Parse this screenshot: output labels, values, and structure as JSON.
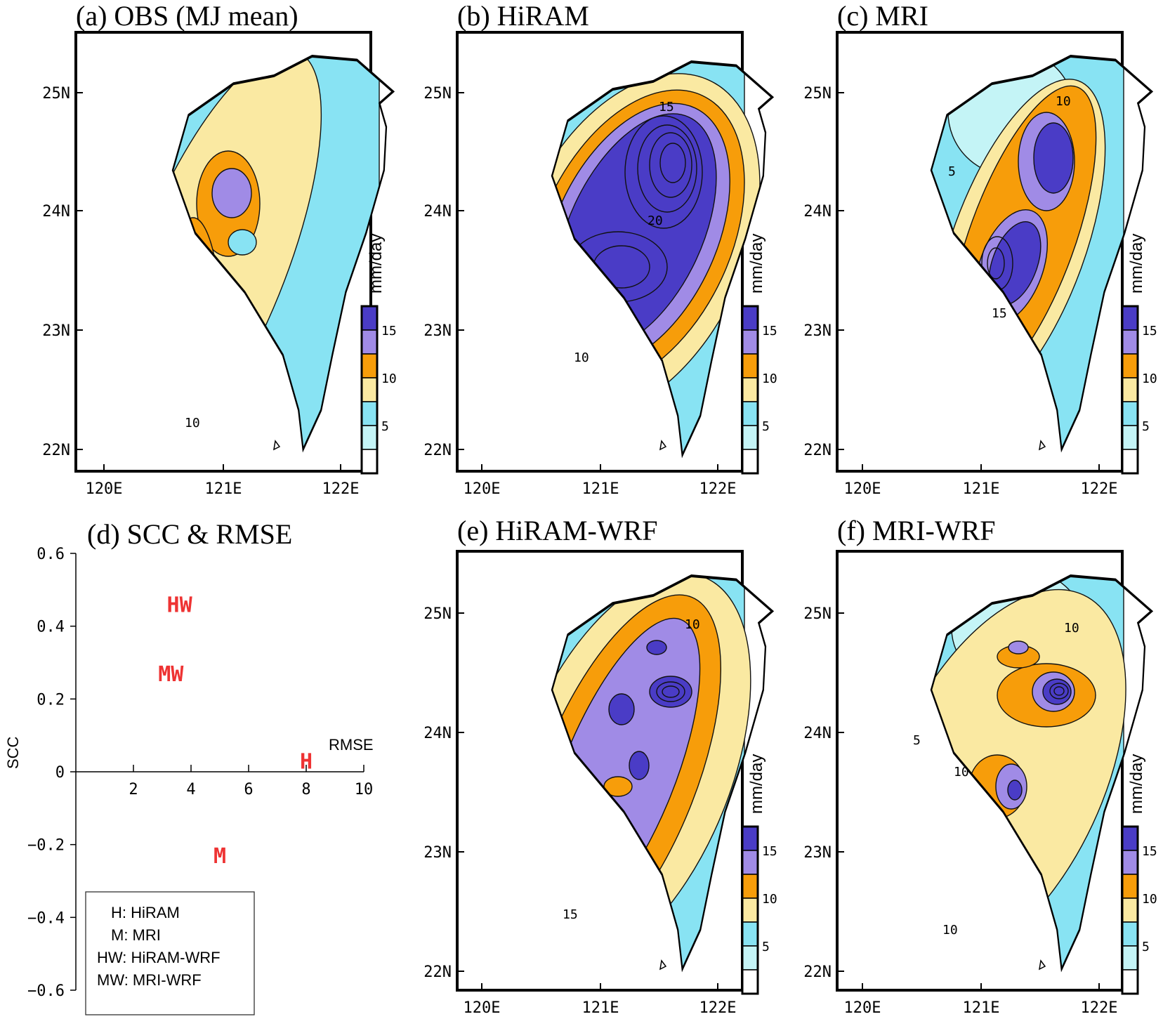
{
  "colors": {
    "level_0_5": "#c4f4f6",
    "level_5_8": "#88e3f3",
    "level_8_10": "#fae9a2",
    "level_10_13": "#f79d0a",
    "level_13_15": "#a08be6",
    "level_15_plus": "#4a3cc6",
    "points": "#ee3333"
  },
  "panels": [
    {
      "key": "a",
      "title": "(a) OBS (MJ mean)"
    },
    {
      "key": "b",
      "title": "(b) HiRAM"
    },
    {
      "key": "c",
      "title": "(c) MRI"
    },
    {
      "key": "e",
      "title": "(e) HiRAM-WRF"
    },
    {
      "key": "f",
      "title": "(f) MRI-WRF"
    }
  ],
  "lat_labels": [
    "25N",
    "24N",
    "23N",
    "22N"
  ],
  "lon_labels": [
    "120E",
    "121E",
    "122E"
  ],
  "colorbar": {
    "unit": "mm/day",
    "labels": [
      "15",
      "10",
      "5"
    ]
  },
  "contour_labels": {
    "a": [
      "10"
    ],
    "b": [
      "15",
      "20",
      "10"
    ],
    "c": [
      "10",
      "5",
      "15"
    ],
    "e": [
      "10",
      "15"
    ],
    "f": [
      "10",
      "5",
      "10",
      "10"
    ]
  },
  "chart_data": {
    "type": "scatter",
    "title": "(d) SCC & RMSE",
    "xlabel": "RMSE",
    "ylabel": "SCC",
    "xlim": [
      0,
      10
    ],
    "ylim": [
      -0.6,
      0.6
    ],
    "x_ticks": [
      2,
      4,
      6,
      8,
      10
    ],
    "y_ticks": [
      "0.6",
      "0.4",
      "0.2",
      "0",
      "−0.2",
      "−0.4",
      "−0.6"
    ],
    "points": [
      {
        "label": "HW",
        "x": 3.6,
        "y": 0.46
      },
      {
        "label": "MW",
        "x": 3.3,
        "y": 0.27
      },
      {
        "label": "H",
        "x": 8.0,
        "y": 0.03
      },
      {
        "label": "M",
        "x": 5.0,
        "y": -0.23
      }
    ],
    "legend": [
      "H: HiRAM",
      "M: MRI",
      "HW: HiRAM-WRF",
      "MW: MRI-WRF"
    ],
    "legend_position": "bottom-left"
  }
}
